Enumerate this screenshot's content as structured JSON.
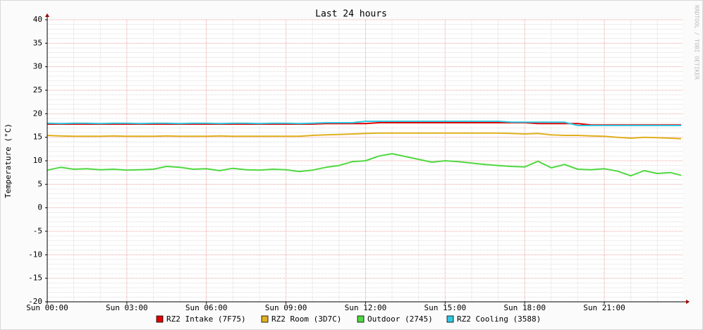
{
  "chart_data": {
    "type": "line",
    "title": "Last 24 hours",
    "y_label": "Temperature (°C)",
    "watermark": "RRDTOOL / TOBI OETIKER",
    "x": [
      0,
      0.5,
      1,
      1.5,
      2,
      2.5,
      3,
      3.5,
      4,
      4.5,
      5,
      5.5,
      6,
      6.5,
      7,
      7.5,
      8,
      8.5,
      9,
      9.5,
      10,
      10.5,
      11,
      11.5,
      12,
      12.5,
      13,
      13.5,
      14,
      14.5,
      15,
      15.5,
      16,
      16.5,
      17,
      17.5,
      18,
      18.5,
      19,
      19.5,
      20,
      20.5,
      21,
      21.5,
      22,
      22.5,
      23,
      23.5,
      23.9
    ],
    "series": [
      {
        "name": "RZ2 Intake (7F75)",
        "color": "#e00000",
        "values": [
          17.8,
          17.8,
          17.8,
          17.8,
          17.8,
          17.8,
          17.8,
          17.8,
          17.8,
          17.8,
          17.8,
          17.8,
          17.8,
          17.8,
          17.8,
          17.8,
          17.8,
          17.8,
          17.8,
          17.8,
          17.8,
          17.9,
          17.9,
          17.9,
          17.9,
          18.1,
          18.1,
          18.1,
          18.1,
          18.1,
          18.1,
          18.1,
          18.1,
          18.1,
          18.1,
          18.1,
          18.1,
          17.9,
          17.9,
          17.9,
          17.9,
          17.6,
          17.6,
          17.6,
          17.6,
          17.6,
          17.6,
          17.6,
          17.6
        ]
      },
      {
        "name": "RZ2 Room (3D7C)",
        "color": "#e0b020",
        "values": [
          15.4,
          15.3,
          15.2,
          15.2,
          15.2,
          15.3,
          15.2,
          15.2,
          15.2,
          15.3,
          15.2,
          15.2,
          15.2,
          15.3,
          15.2,
          15.2,
          15.2,
          15.2,
          15.2,
          15.2,
          15.4,
          15.5,
          15.6,
          15.7,
          15.8,
          15.9,
          15.9,
          15.9,
          15.9,
          15.9,
          15.9,
          15.9,
          15.9,
          15.9,
          15.9,
          15.8,
          15.7,
          15.8,
          15.5,
          15.4,
          15.4,
          15.3,
          15.2,
          15.0,
          14.8,
          15.0,
          14.9,
          14.8,
          14.7
        ]
      },
      {
        "name": "Outdoor (2745)",
        "color": "#50d840",
        "values": [
          8.0,
          8.6,
          8.2,
          8.3,
          8.1,
          8.2,
          8.0,
          8.1,
          8.2,
          8.8,
          8.6,
          8.2,
          8.3,
          7.9,
          8.4,
          8.1,
          8.0,
          8.2,
          8.1,
          7.7,
          8.0,
          8.6,
          9.0,
          9.8,
          10.0,
          11.0,
          11.5,
          10.9,
          10.3,
          9.7,
          10.0,
          9.8,
          9.5,
          9.2,
          9.0,
          8.8,
          8.7,
          9.9,
          8.5,
          9.2,
          8.2,
          8.1,
          8.3,
          7.8,
          6.8,
          7.9,
          7.3,
          7.5,
          6.9
        ]
      },
      {
        "name": "RZ2 Cooling (3588)",
        "color": "#30c8e0",
        "values": [
          18.0,
          17.9,
          18.0,
          18.0,
          17.9,
          18.0,
          18.0,
          17.9,
          18.0,
          18.0,
          17.9,
          18.0,
          18.0,
          17.9,
          18.0,
          18.0,
          17.9,
          18.0,
          18.0,
          17.9,
          18.0,
          18.1,
          18.1,
          18.1,
          18.4,
          18.4,
          18.4,
          18.4,
          18.4,
          18.4,
          18.4,
          18.4,
          18.4,
          18.4,
          18.4,
          18.2,
          18.2,
          18.2,
          18.2,
          18.2,
          17.5,
          17.5,
          17.5,
          17.5,
          17.5,
          17.5,
          17.5,
          17.5,
          17.5
        ]
      }
    ],
    "xlim": [
      0,
      23.95
    ],
    "xticks": [
      {
        "value": 0,
        "label": "Sun 00:00"
      },
      {
        "value": 3,
        "label": "Sun 03:00"
      },
      {
        "value": 6,
        "label": "Sun 06:00"
      },
      {
        "value": 9,
        "label": "Sun 09:00"
      },
      {
        "value": 12,
        "label": "Sun 12:00"
      },
      {
        "value": 15,
        "label": "Sun 15:00"
      },
      {
        "value": 18,
        "label": "Sun 18:00"
      },
      {
        "value": 21,
        "label": "Sun 21:00"
      }
    ],
    "xminorticks": [
      1,
      2,
      4,
      5,
      7,
      8,
      10,
      11,
      13,
      14,
      16,
      17,
      19,
      20,
      22,
      23
    ],
    "ylim": [
      -20,
      40
    ],
    "yticks": [
      -20,
      -15,
      -10,
      -5,
      0,
      5,
      10,
      15,
      20,
      25,
      30,
      35,
      40
    ],
    "yminorticks": [
      -19,
      -18,
      -17,
      -16,
      -14,
      -13,
      -12,
      -11,
      -9,
      -8,
      -7,
      -6,
      -4,
      -3,
      -2,
      -1,
      1,
      2,
      3,
      4,
      6,
      7,
      8,
      9,
      11,
      12,
      13,
      14,
      16,
      17,
      18,
      19,
      21,
      22,
      23,
      24,
      26,
      27,
      28,
      29,
      31,
      32,
      33,
      34,
      36,
      37,
      38,
      39
    ],
    "grid": true,
    "legend": "bottom"
  }
}
